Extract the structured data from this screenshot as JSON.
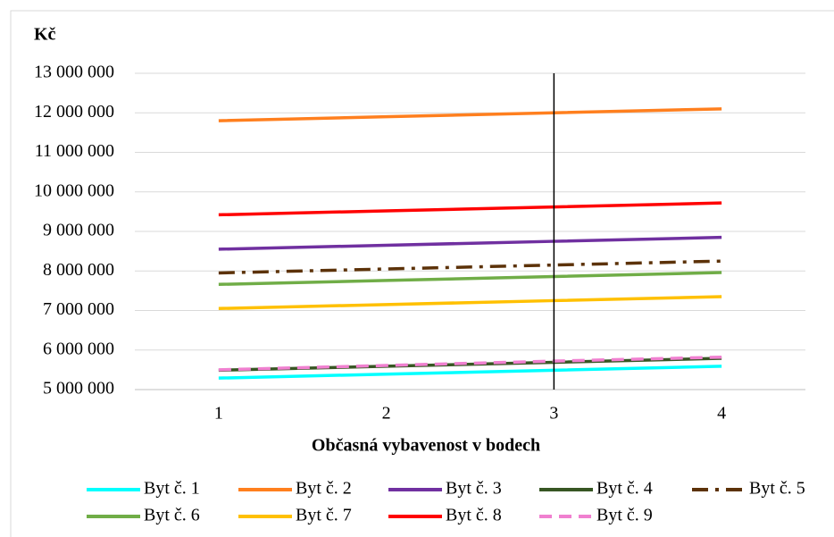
{
  "chart_data": {
    "type": "line",
    "y_label": "Kč",
    "x_label": "Občasná vybavenost v bodech",
    "categories": [
      "1",
      "2",
      "3",
      "4"
    ],
    "xlim": [
      0.5,
      4.5
    ],
    "vline_x": 3,
    "ylim": [
      5000000,
      13000000
    ],
    "yticks": [
      {
        "value": 5000000,
        "label": "5 000 000"
      },
      {
        "value": 6000000,
        "label": "6 000 000"
      },
      {
        "value": 7000000,
        "label": "7 000 000"
      },
      {
        "value": 8000000,
        "label": "8 000 000"
      },
      {
        "value": 9000000,
        "label": "9 000 000"
      },
      {
        "value": 10000000,
        "label": "10 000 000"
      },
      {
        "value": 11000000,
        "label": "11 000 000"
      },
      {
        "value": 12000000,
        "label": "12 000 000"
      },
      {
        "value": 13000000,
        "label": "13 000 000"
      }
    ],
    "grid": true,
    "legend": "bottom",
    "series": [
      {
        "name": "Byt č. 1",
        "color": "#00ffff",
        "dash": "solid",
        "values": [
          5290000,
          5390000,
          5490000,
          5590000
        ]
      },
      {
        "name": "Byt č. 2",
        "color": "#ff7f1e",
        "dash": "solid",
        "values": [
          11800000,
          11900000,
          12000000,
          12100000
        ]
      },
      {
        "name": "Byt č. 3",
        "color": "#7030a0",
        "dash": "solid",
        "values": [
          8550000,
          8650000,
          8750000,
          8850000
        ]
      },
      {
        "name": "Byt č. 4",
        "color": "#375623",
        "dash": "solid",
        "values": [
          5490000,
          5590000,
          5690000,
          5790000
        ]
      },
      {
        "name": "Byt č. 5",
        "color": "#5c3209",
        "dash": "dashdot",
        "values": [
          7950000,
          8050000,
          8150000,
          8250000
        ]
      },
      {
        "name": "Byt č. 6",
        "color": "#70ad47",
        "dash": "solid",
        "values": [
          7660000,
          7760000,
          7860000,
          7960000
        ]
      },
      {
        "name": "Byt č. 7",
        "color": "#ffc000",
        "dash": "solid",
        "values": [
          7050000,
          7150000,
          7250000,
          7350000
        ]
      },
      {
        "name": "Byt č. 8",
        "color": "#ff0000",
        "dash": "solid",
        "values": [
          9420000,
          9520000,
          9620000,
          9720000
        ]
      },
      {
        "name": "Byt č. 9",
        "color": "#f080d0",
        "dash": "dash",
        "values": [
          5500000,
          5610000,
          5720000,
          5820000
        ]
      }
    ]
  }
}
